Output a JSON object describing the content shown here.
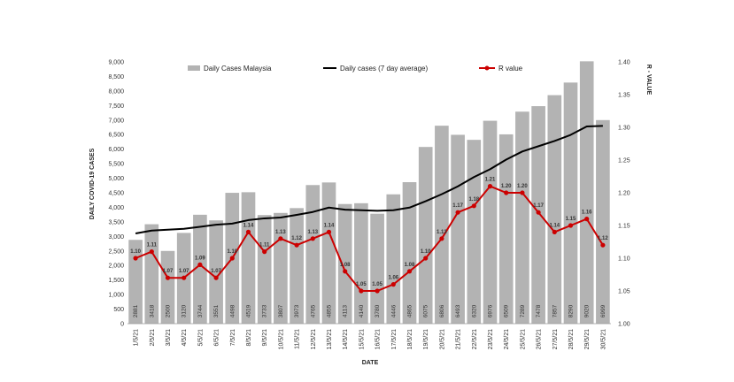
{
  "chart_data": {
    "type": "bar+line",
    "xlabel": "DATE",
    "ylabel": "DAILY COVID-19 CASES",
    "y2label": "R - VALUE",
    "ylim": [
      0,
      9000
    ],
    "y2lim": [
      1.0,
      1.4
    ],
    "yticks": [
      "0",
      "500",
      "1,000",
      "1,500",
      "2,000",
      "2,500",
      "3,000",
      "3,500",
      "4,000",
      "4,500",
      "5,000",
      "5,500",
      "6,000",
      "6,500",
      "7,000",
      "7,500",
      "8,000",
      "8,500",
      "9,000"
    ],
    "y2ticks": [
      "1.00",
      "1.05",
      "1.10",
      "1.15",
      "1.20",
      "1.25",
      "1.30",
      "1.35",
      "1.40"
    ],
    "categories": [
      "1/5/21",
      "2/5/21",
      "3/5/21",
      "4/5/21",
      "5/5/21",
      "6/5/21",
      "7/5/21",
      "8/5/21",
      "9/5/21",
      "10/5/21",
      "11/5/21",
      "12/5/21",
      "13/5/21",
      "14/5/21",
      "15/5/21",
      "16/5/21",
      "17/5/21",
      "18/5/21",
      "19/5/21",
      "20/5/21",
      "21/5/21",
      "22/5/21",
      "23/5/21",
      "24/5/21",
      "25/5/21",
      "26/5/21",
      "27/5/21",
      "28/5/21",
      "29/5/21",
      "30/5/21"
    ],
    "series": [
      {
        "name": "Daily Cases Malaysia",
        "kind": "bar",
        "color": "#b3b3b3",
        "values": [
          2881,
          3418,
          2500,
          3120,
          3744,
          3551,
          4498,
          4519,
          3733,
          3807,
          3973,
          4765,
          4855,
          4113,
          4140,
          3780,
          4446,
          4865,
          6075,
          6806,
          6493,
          6320,
          6976,
          6509,
          7289,
          7478,
          7857,
          8290,
          9020,
          6999
        ],
        "labels": [
          "2881",
          "3418",
          "2500",
          "3120",
          "3744",
          "3551",
          "4498",
          "4519",
          "3733",
          "3807",
          "3973",
          "4765",
          "4855",
          "4113",
          "4140",
          "3780",
          "4446",
          "4865",
          "6075",
          "6806",
          "6493",
          "6320",
          "6976",
          "6509",
          "7289",
          "7478",
          "7857",
          "8290",
          "9020",
          "6999"
        ]
      },
      {
        "name": "Daily cases (7 day average)",
        "kind": "line",
        "color": "#000000",
        "values": [
          3100,
          3200,
          3230,
          3260,
          3330,
          3400,
          3440,
          3560,
          3620,
          3650,
          3740,
          3840,
          3990,
          3920,
          3900,
          3880,
          3900,
          3990,
          4210,
          4450,
          4720,
          5040,
          5310,
          5640,
          5920,
          6100,
          6280,
          6490,
          6780,
          6800
        ]
      },
      {
        "name": "R value",
        "kind": "line",
        "axis": "right",
        "color": "#cc0000",
        "values": [
          1.1,
          1.11,
          1.07,
          1.07,
          1.09,
          1.07,
          1.1,
          1.14,
          1.11,
          1.13,
          1.12,
          1.13,
          1.14,
          1.08,
          1.05,
          1.05,
          1.06,
          1.08,
          1.1,
          1.13,
          1.17,
          1.18,
          1.21,
          1.2,
          1.2,
          1.17,
          1.14,
          1.15,
          1.16,
          1.12
        ],
        "labels": [
          "1.10",
          "1.11",
          "1.07",
          "1.07",
          "1.09",
          "1.07",
          "1.10",
          "1.14",
          "1.11",
          "1.13",
          "1.12",
          "1.13",
          "1.14",
          "1.08",
          "1.05",
          "1.05",
          "1.06",
          "1.08",
          "1.10",
          "1.13",
          "1.17",
          "1.18",
          "1.21",
          "1.20",
          "1.20",
          "1.17",
          "1.14",
          "1.15",
          "1.16",
          "1.12"
        ]
      }
    ],
    "legend": [
      "Daily Cases Malaysia",
      "Daily cases (7 day average)",
      "R value"
    ],
    "grid": false
  }
}
